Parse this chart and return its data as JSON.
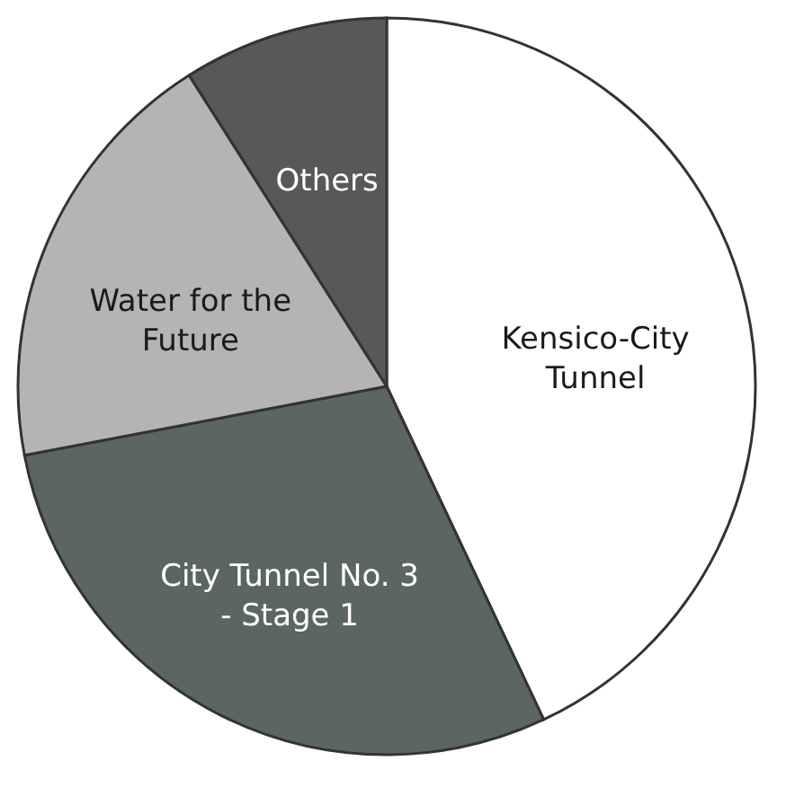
{
  "chart_data": {
    "type": "pie",
    "categories": [
      "Kensico-City Tunnel",
      "City Tunnel No. 3 - Stage 1",
      "Water for the Future",
      "Others"
    ],
    "values": [
      43,
      29,
      19,
      9
    ],
    "colors": [
      "#ffffff",
      "#5b6660",
      "#b4b4b6",
      "#58585a"
    ],
    "legend": false
  }
}
